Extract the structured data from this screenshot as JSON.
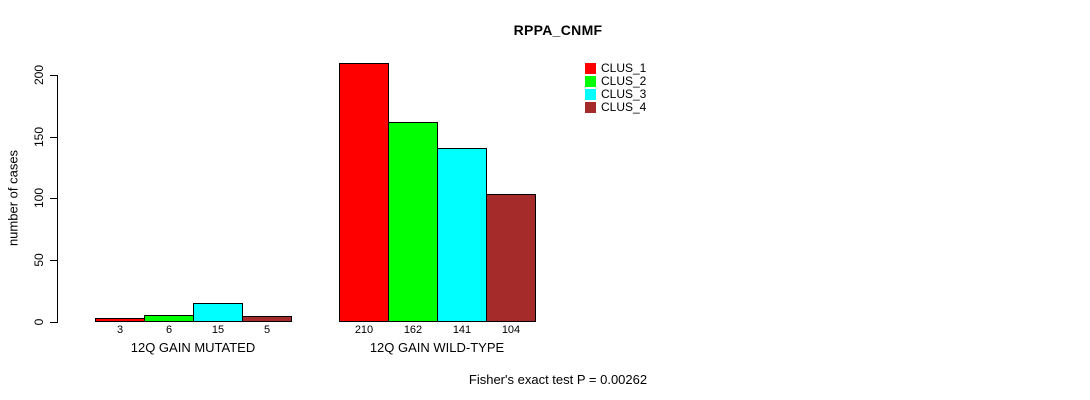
{
  "colors": {
    "background": "#FFFFFF",
    "axis": "#000000",
    "text": "#000000",
    "clus_1": "#FF0000",
    "clus_2": "#00FF00",
    "clus_3": "#00FFFF",
    "clus_4": "#A52A2A"
  },
  "chart_data": {
    "type": "bar",
    "title": "RPPA_CNMF",
    "xlabel": "",
    "ylabel": "number of cases",
    "ylim": [
      0,
      200
    ],
    "yticks": [
      0,
      50,
      100,
      150,
      200
    ],
    "grid": false,
    "legend_position": "top-right",
    "categories": [
      "12Q GAIN MUTATED",
      "12Q GAIN WILD-TYPE"
    ],
    "series": [
      {
        "name": "CLUS_1",
        "color": "#FF0000",
        "values": [
          3,
          210
        ]
      },
      {
        "name": "CLUS_2",
        "color": "#00FF00",
        "values": [
          6,
          162
        ]
      },
      {
        "name": "CLUS_3",
        "color": "#00FFFF",
        "values": [
          15,
          141
        ]
      },
      {
        "name": "CLUS_4",
        "color": "#A52A2A",
        "values": [
          5,
          104
        ]
      }
    ],
    "bar_value_labels": [
      [
        "3",
        "6",
        "15",
        "5"
      ],
      [
        "210",
        "162",
        "141",
        "104"
      ]
    ],
    "annotation": "Fisher's exact test P = 0.00262"
  }
}
